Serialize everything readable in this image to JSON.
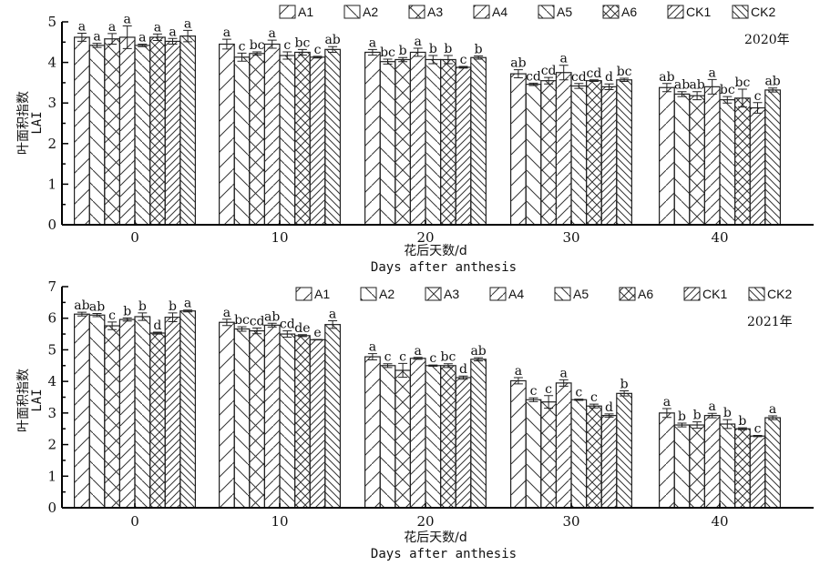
{
  "chart_data": [
    {
      "type": "bar",
      "title": "2020年",
      "xlabel": "花后天数/d",
      "xlabel_en": "Days after anthesis",
      "ylabel": "叶面积指数",
      "ylabel_en": "LAI",
      "ylim": [
        0,
        5
      ],
      "yticks": [
        "0",
        "1",
        "2",
        "3",
        "4",
        "5"
      ],
      "categories": [
        "0",
        "10",
        "20",
        "30",
        "40"
      ],
      "legend_position": "top",
      "series": [
        {
          "name": "A1",
          "pattern": "diag-up",
          "values": [
            4.62,
            4.45,
            4.25,
            3.72,
            3.38
          ],
          "errors": [
            0.1,
            0.12,
            0.07,
            0.1,
            0.1
          ],
          "labels": [
            "a",
            "a",
            "a",
            "ab",
            "ab"
          ]
        },
        {
          "name": "A2",
          "pattern": "diag-down",
          "values": [
            4.42,
            4.13,
            4.02,
            3.46,
            3.22
          ],
          "errors": [
            0.05,
            0.1,
            0.06,
            0.03,
            0.06
          ],
          "labels": [
            "a",
            "c",
            "bc",
            "cd",
            "ab"
          ]
        },
        {
          "name": "A3",
          "pattern": "cross",
          "values": [
            4.58,
            4.22,
            4.07,
            3.55,
            3.18
          ],
          "errors": [
            0.13,
            0.04,
            0.05,
            0.08,
            0.1
          ],
          "labels": [
            "a",
            "bc",
            "b",
            "cd",
            "ab"
          ]
        },
        {
          "name": "A4",
          "pattern": "diag-up-dense",
          "values": [
            4.62,
            4.45,
            4.25,
            3.75,
            3.4
          ],
          "errors": [
            0.28,
            0.1,
            0.1,
            0.18,
            0.18
          ],
          "labels": [
            "a",
            "a",
            "a",
            "a",
            "a"
          ]
        },
        {
          "name": "A5",
          "pattern": "diag-down-dense",
          "values": [
            4.42,
            4.17,
            4.07,
            3.42,
            3.08
          ],
          "errors": [
            0.03,
            0.09,
            0.1,
            0.06,
            0.08
          ],
          "labels": [
            "a",
            "c",
            "b",
            "cd",
            "bc"
          ]
        },
        {
          "name": "A6",
          "pattern": "cross-dense",
          "values": [
            4.62,
            4.25,
            4.07,
            3.55,
            3.12
          ],
          "errors": [
            0.08,
            0.07,
            0.1,
            0.02,
            0.22
          ],
          "labels": [
            "a",
            "bc",
            "b",
            "cd",
            "bc"
          ]
        },
        {
          "name": "CK1",
          "pattern": "diag-up-double",
          "values": [
            4.52,
            4.13,
            3.88,
            3.4,
            2.88
          ],
          "errors": [
            0.07,
            0.02,
            0.02,
            0.07,
            0.13
          ],
          "labels": [
            "a",
            "c",
            "c",
            "d",
            "c"
          ]
        },
        {
          "name": "CK2",
          "pattern": "diag-down-double",
          "values": [
            4.65,
            4.32,
            4.12,
            3.57,
            3.32
          ],
          "errors": [
            0.14,
            0.07,
            0.04,
            0.04,
            0.05
          ],
          "labels": [
            "a",
            "ab",
            "b",
            "bc",
            "ab"
          ]
        }
      ]
    },
    {
      "type": "bar",
      "title": "2021年",
      "xlabel": "花后天数/d",
      "xlabel_en": "Days after anthesis",
      "ylabel": "叶面积指数",
      "ylabel_en": "LAI",
      "ylim": [
        0,
        7
      ],
      "yticks": [
        "0",
        "1",
        "2",
        "3",
        "4",
        "5",
        "6",
        "7"
      ],
      "categories": [
        "0",
        "10",
        "20",
        "30",
        "40"
      ],
      "legend_position": "top",
      "series": [
        {
          "name": "A1",
          "pattern": "diag-up",
          "values": [
            6.13,
            5.87,
            4.78,
            4.02,
            3.0
          ],
          "errors": [
            0.06,
            0.1,
            0.1,
            0.1,
            0.14
          ],
          "labels": [
            "ab",
            "a",
            "a",
            "a",
            "a"
          ]
        },
        {
          "name": "A2",
          "pattern": "diag-down",
          "values": [
            6.1,
            5.66,
            4.5,
            3.42,
            2.62
          ],
          "errors": [
            0.05,
            0.07,
            0.06,
            0.06,
            0.06
          ],
          "labels": [
            "ab",
            "bc",
            "c",
            "c",
            "b"
          ]
        },
        {
          "name": "A3",
          "pattern": "cross",
          "values": [
            5.76,
            5.6,
            4.35,
            3.35,
            2.62
          ],
          "errors": [
            0.12,
            0.09,
            0.22,
            0.2,
            0.1
          ],
          "labels": [
            "c",
            "cd",
            "c",
            "c",
            "b"
          ]
        },
        {
          "name": "A4",
          "pattern": "diag-up-dense",
          "values": [
            5.96,
            5.78,
            4.73,
            3.95,
            2.92
          ],
          "errors": [
            0.05,
            0.06,
            0.03,
            0.1,
            0.07
          ],
          "labels": [
            "b",
            "ab",
            "a",
            "a",
            "a"
          ]
        },
        {
          "name": "A5",
          "pattern": "diag-down-dense",
          "values": [
            6.05,
            5.5,
            4.5,
            3.42,
            2.65
          ],
          "errors": [
            0.12,
            0.1,
            0.02,
            0.02,
            0.14
          ],
          "labels": [
            "b",
            "cd",
            "c",
            "c",
            "b"
          ]
        },
        {
          "name": "A6",
          "pattern": "cross-dense",
          "values": [
            5.53,
            5.45,
            4.5,
            3.22,
            2.5
          ],
          "errors": [
            0.03,
            0.03,
            0.06,
            0.06,
            0.03
          ],
          "labels": [
            "d",
            "de",
            "bc",
            "c",
            "b"
          ]
        },
        {
          "name": "CK1",
          "pattern": "diag-up-double",
          "values": [
            6.03,
            5.32,
            4.12,
            2.92,
            2.27
          ],
          "errors": [
            0.14,
            0.01,
            0.05,
            0.05,
            0.02
          ],
          "labels": [
            "b",
            "e",
            "d",
            "d",
            "c"
          ]
        },
        {
          "name": "CK2",
          "pattern": "diag-down-double",
          "values": [
            6.23,
            5.8,
            4.7,
            3.62,
            2.85
          ],
          "errors": [
            0.03,
            0.12,
            0.05,
            0.08,
            0.06
          ],
          "labels": [
            "a",
            "a",
            "ab",
            "b",
            "a"
          ]
        }
      ]
    }
  ]
}
